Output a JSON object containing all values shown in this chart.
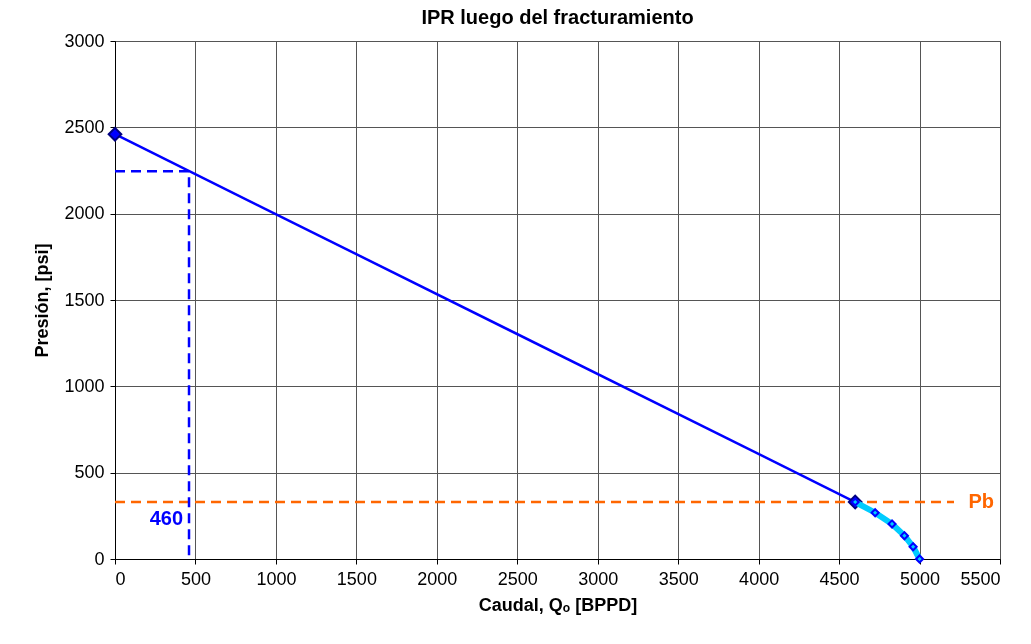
{
  "chart_data": {
    "type": "line",
    "title": "IPR luego del fracturamiento",
    "xlabel": "Caudal, Qₒ [BPPD]",
    "ylabel": "Presión, [psi]",
    "xlim": [
      0,
      5500
    ],
    "xticks": [
      0,
      500,
      1000,
      1500,
      2000,
      2500,
      3000,
      3500,
      4000,
      4500,
      5000,
      5500
    ],
    "ylim": [
      0,
      3000
    ],
    "yticks": [
      0,
      500,
      1000,
      1500,
      2000,
      2500,
      3000
    ],
    "grid": true,
    "series": [
      {
        "x": [
          0,
          4600
        ],
        "values": [
          2460,
          330
        ],
        "color": "#0000ff",
        "marker": "diamond",
        "line_style": "solid"
      },
      {
        "x": [
          4600,
          4724,
          4829,
          4906,
          4960,
          5000
        ],
        "values": [
          330,
          268,
          203,
          135,
          71,
          0
        ],
        "color": "#00ccff",
        "marker": "diamond",
        "line_style": "solid"
      },
      {
        "x": [
          0,
          460,
          460
        ],
        "values": [
          2245,
          2245,
          0
        ],
        "color": "#0000ff",
        "marker": "none",
        "line_style": "dashed"
      }
    ],
    "ref_lines": [
      {
        "axis": "y",
        "value": 330,
        "label": "Pb",
        "color": "#ff6600",
        "line_style": "dashed"
      }
    ],
    "annotations": [
      {
        "text": "460",
        "x": 460,
        "y": 230
      }
    ]
  }
}
